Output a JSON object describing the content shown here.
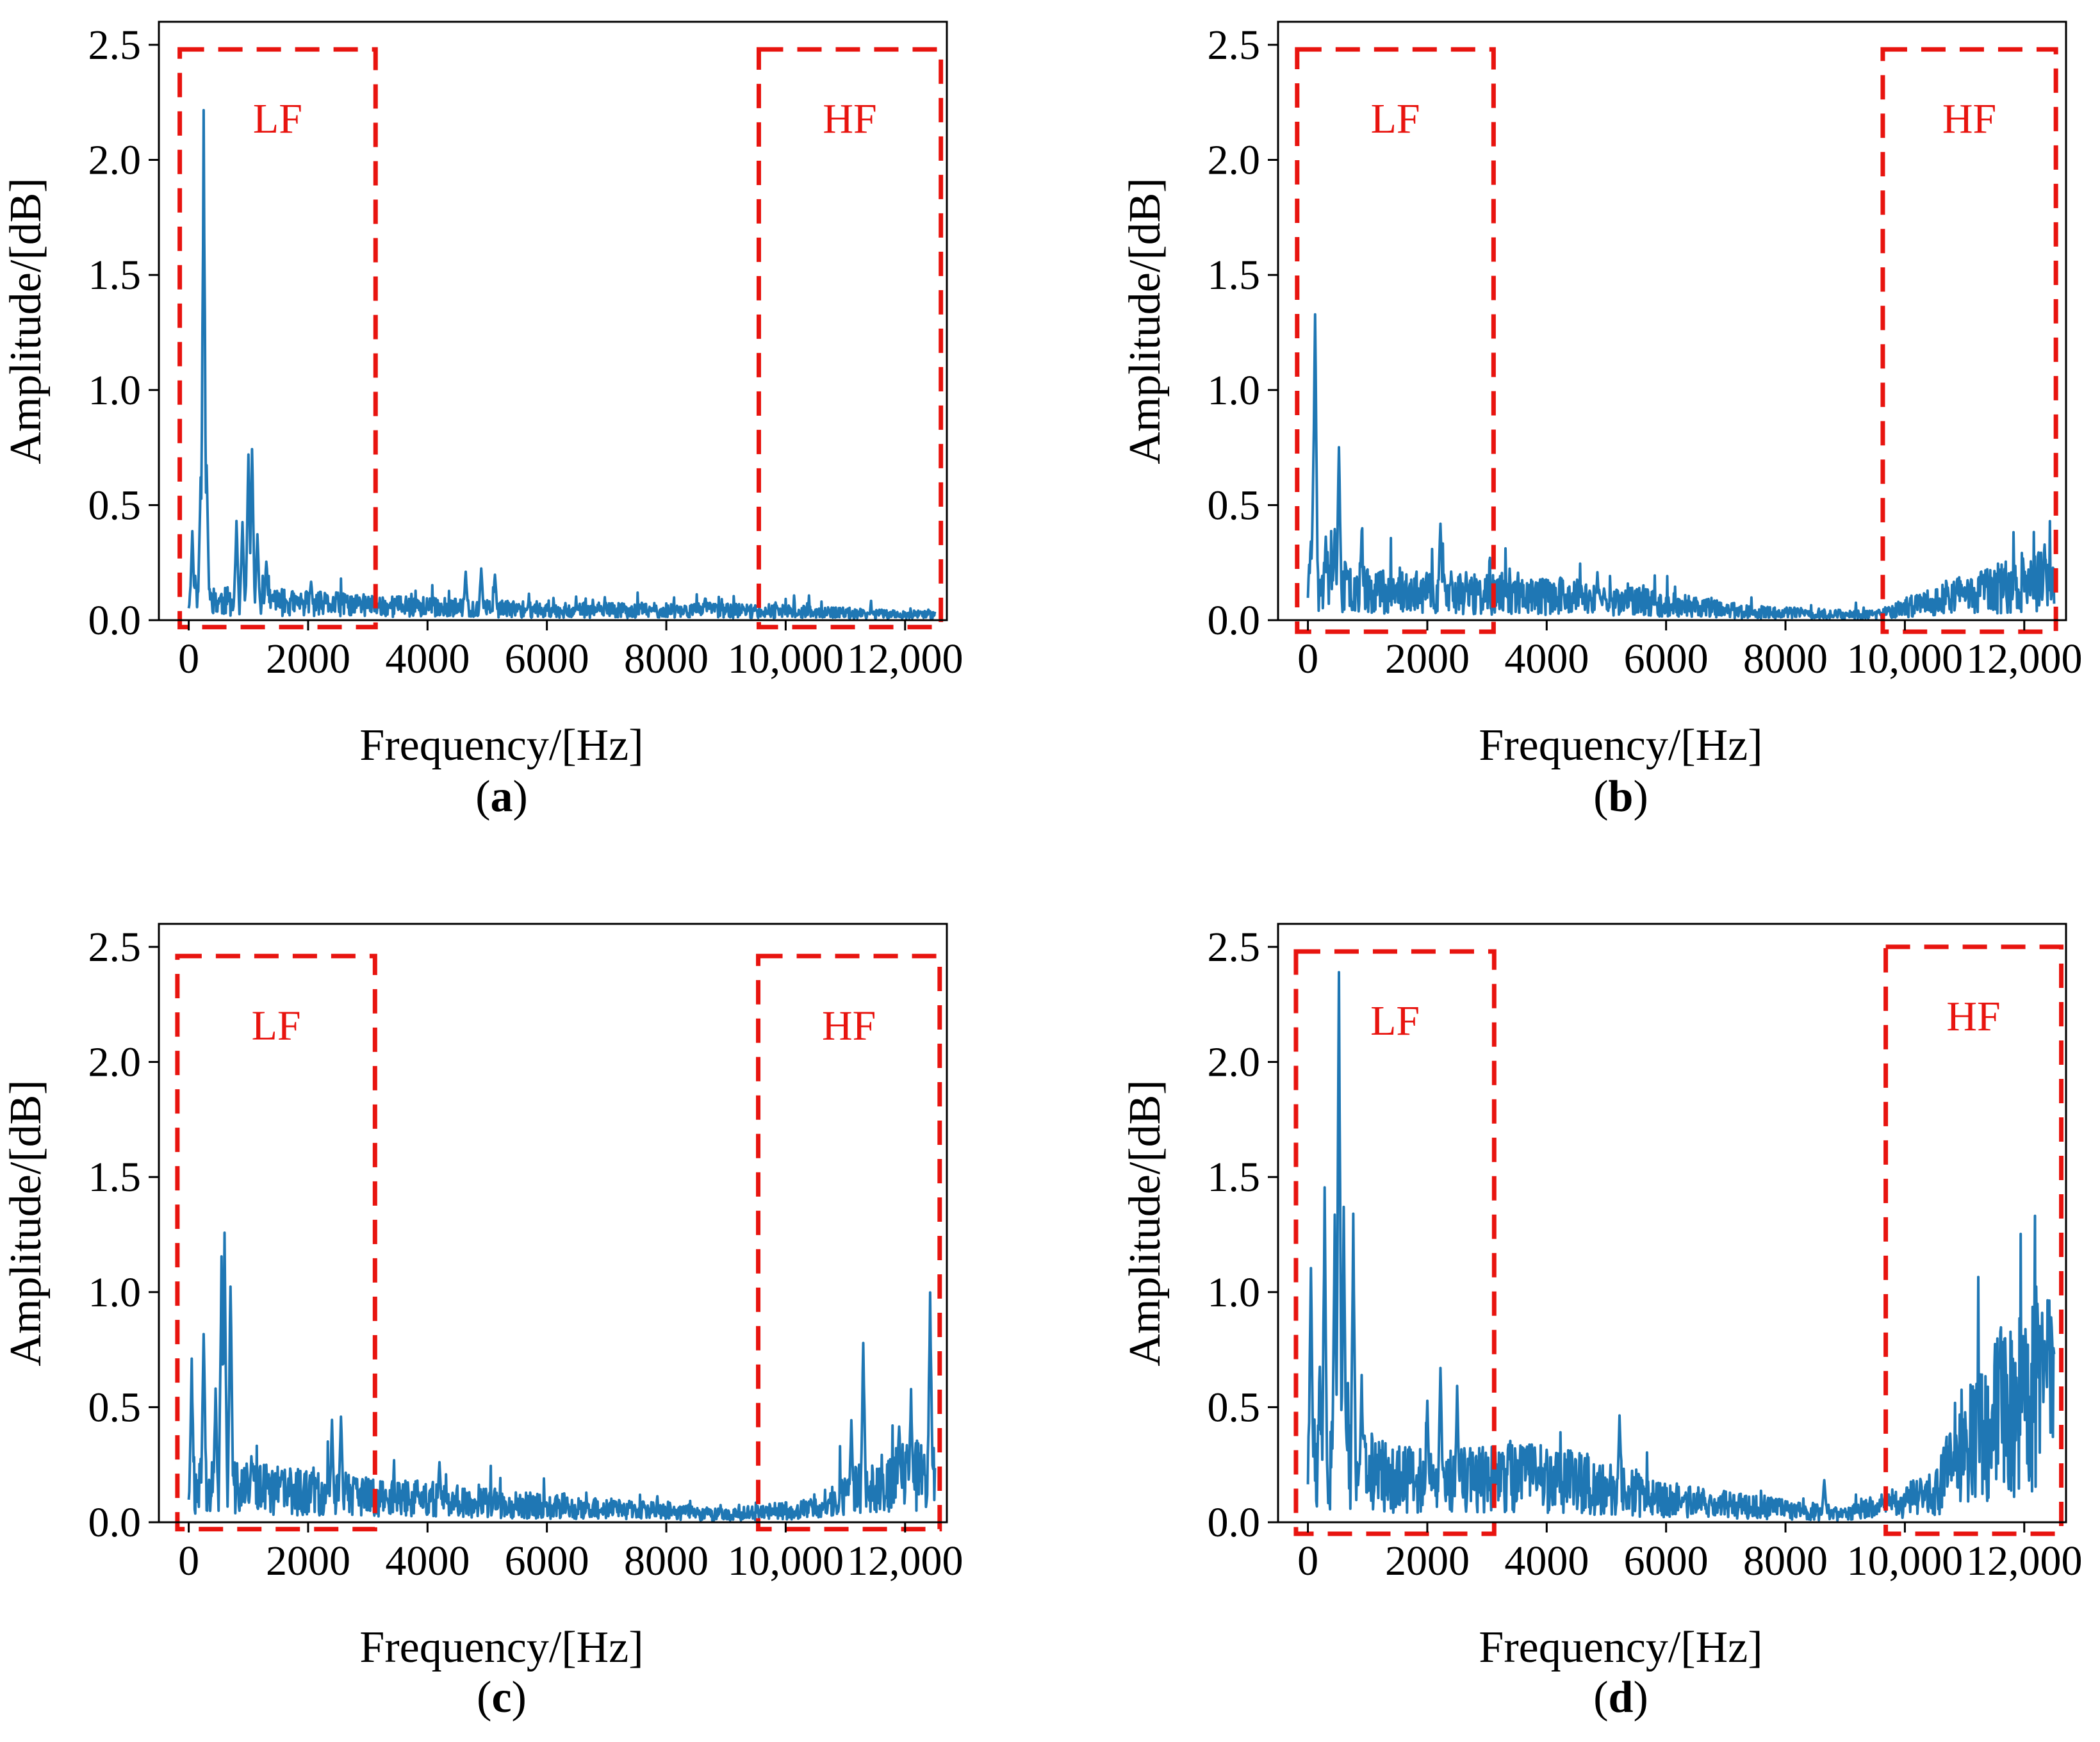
{
  "figure": {
    "colors": {
      "series": "#1f77b4",
      "box": "#e8140f",
      "axis": "#000000",
      "background": "#ffffff"
    }
  },
  "chart_data": [
    {
      "panel": "a",
      "type": "line",
      "caption_letter": "a",
      "xlabel": "Frequency/[Hz]",
      "ylabel": "Amplitude/[dB]",
      "xlim": [
        -500,
        12700
      ],
      "ylim": [
        0,
        2.6
      ],
      "xticks": [
        0,
        2000,
        4000,
        6000,
        8000,
        10000,
        12000
      ],
      "xtick_labels": [
        "0",
        "2000",
        "4000",
        "6000",
        "8000",
        "10,000",
        "12,000"
      ],
      "yticks": [
        0.0,
        0.5,
        1.0,
        1.5,
        2.0,
        2.5
      ],
      "ytick_labels": [
        "0.0",
        "0.5",
        "1.0",
        "1.5",
        "2.0",
        "2.5"
      ],
      "regions": [
        {
          "label": "LF",
          "x": [
            -150,
            3130
          ],
          "y": [
            -0.03,
            2.48
          ]
        },
        {
          "label": "HF",
          "x": [
            9550,
            12600
          ],
          "y": [
            -0.03,
            2.48
          ]
        }
      ],
      "baseline": [
        [
          0,
          0.08
        ],
        [
          3000,
          0.06
        ],
        [
          6000,
          0.04
        ],
        [
          9000,
          0.04
        ],
        [
          12500,
          0.02
        ]
      ],
      "noise": 0.6,
      "peaks": [
        [
          60,
          0.4
        ],
        [
          200,
          0.66
        ],
        [
          250,
          2.22
        ],
        [
          300,
          0.7
        ],
        [
          800,
          0.45
        ],
        [
          900,
          0.45
        ],
        [
          1000,
          0.76
        ],
        [
          1060,
          0.79
        ],
        [
          1150,
          0.4
        ],
        [
          1300,
          0.28
        ],
        [
          2050,
          0.18
        ],
        [
          4640,
          0.22
        ],
        [
          4900,
          0.24
        ],
        [
          5130,
          0.21
        ],
        [
          8650,
          0.1
        ]
      ],
      "seed": 11
    },
    {
      "panel": "b",
      "type": "line",
      "caption_letter": "b",
      "xlabel": "Frequency/[Hz]",
      "ylabel": "Amplitude/[dB]",
      "xlim": [
        -500,
        12700
      ],
      "ylim": [
        0,
        2.6
      ],
      "xticks": [
        0,
        2000,
        4000,
        6000,
        8000,
        10000,
        12000
      ],
      "xtick_labels": [
        "0",
        "2000",
        "4000",
        "6000",
        "8000",
        "10,000",
        "12,000"
      ],
      "yticks": [
        0.0,
        0.5,
        1.0,
        1.5,
        2.0,
        2.5
      ],
      "ytick_labels": [
        "0.0",
        "0.5",
        "1.0",
        "1.5",
        "2.0",
        "2.5"
      ],
      "regions": [
        {
          "label": "LF",
          "x": [
            -180,
            3110
          ],
          "y": [
            -0.05,
            2.48
          ]
        },
        {
          "label": "HF",
          "x": [
            9630,
            12530
          ],
          "y": [
            -0.05,
            2.48
          ]
        }
      ],
      "baseline": [
        [
          0,
          0.14
        ],
        [
          2000,
          0.1
        ],
        [
          4500,
          0.09
        ],
        [
          7500,
          0.03
        ],
        [
          9500,
          0.02
        ],
        [
          11000,
          0.1
        ],
        [
          12400,
          0.15
        ]
      ],
      "noise": 0.7,
      "peaks": [
        [
          50,
          0.37
        ],
        [
          100,
          0.9
        ],
        [
          120,
          1.44
        ],
        [
          300,
          0.38
        ],
        [
          450,
          0.42
        ],
        [
          520,
          0.78
        ],
        [
          900,
          0.39
        ],
        [
          2220,
          0.46
        ],
        [
          2400,
          0.22
        ],
        [
          2650,
          0.23
        ],
        [
          4850,
          0.21
        ],
        [
          5400,
          0.15
        ],
        [
          11300,
          0.2
        ],
        [
          12340,
          0.35
        ]
      ],
      "seed": 23
    },
    {
      "panel": "c",
      "type": "line",
      "caption_letter": "c",
      "xlabel": "Frequency/[Hz]",
      "ylabel": "Amplitude/[dB]",
      "xlim": [
        -500,
        12700
      ],
      "ylim": [
        0,
        2.6
      ],
      "xticks": [
        0,
        2000,
        4000,
        6000,
        8000,
        10000,
        12000
      ],
      "xtick_labels": [
        "0",
        "2000",
        "4000",
        "6000",
        "8000",
        "10,000",
        "12,000"
      ],
      "yticks": [
        0.0,
        0.5,
        1.0,
        1.5,
        2.0,
        2.5
      ],
      "ytick_labels": [
        "0.0",
        "0.5",
        "1.0",
        "1.5",
        "2.0",
        "2.5"
      ],
      "regions": [
        {
          "label": "LF",
          "x": [
            -190,
            3120
          ],
          "y": [
            -0.03,
            2.46
          ]
        },
        {
          "label": "HF",
          "x": [
            9540,
            12580
          ],
          "y": [
            -0.03,
            2.46
          ]
        }
      ],
      "baseline": [
        [
          0,
          0.14
        ],
        [
          3000,
          0.1
        ],
        [
          6000,
          0.06
        ],
        [
          9000,
          0.03
        ],
        [
          10500,
          0.05
        ],
        [
          11500,
          0.15
        ],
        [
          12500,
          0.2
        ]
      ],
      "noise": 0.7,
      "peaks": [
        [
          50,
          0.72
        ],
        [
          250,
          0.88
        ],
        [
          450,
          0.6
        ],
        [
          550,
          1.2
        ],
        [
          600,
          1.27
        ],
        [
          700,
          1.09
        ],
        [
          1050,
          0.31
        ],
        [
          2400,
          0.46
        ],
        [
          2550,
          0.5
        ],
        [
          4200,
          0.27
        ],
        [
          11100,
          0.46
        ],
        [
          11300,
          0.82
        ],
        [
          11900,
          0.46
        ],
        [
          12100,
          0.6
        ],
        [
          12420,
          1.03
        ],
        [
          12550,
          0.8
        ]
      ],
      "seed": 37
    },
    {
      "panel": "d",
      "type": "line",
      "caption_letter": "d",
      "xlabel": "Frequency/[Hz]",
      "ylabel": "Amplitude/[dB]",
      "xlim": [
        -500,
        12700
      ],
      "ylim": [
        0,
        2.6
      ],
      "xticks": [
        0,
        2000,
        4000,
        6000,
        8000,
        10000,
        12000
      ],
      "xtick_labels": [
        "0",
        "2000",
        "4000",
        "6000",
        "8000",
        "10,000",
        "12,000"
      ],
      "yticks": [
        0.0,
        0.5,
        1.0,
        1.5,
        2.0,
        2.5
      ],
      "ytick_labels": [
        "0.0",
        "0.5",
        "1.0",
        "1.5",
        "2.0",
        "2.5"
      ],
      "regions": [
        {
          "label": "LF",
          "x": [
            -200,
            3120
          ],
          "y": [
            -0.05,
            2.48
          ]
        },
        {
          "label": "HF",
          "x": [
            9680,
            12620
          ],
          "y": [
            -0.05,
            2.5
          ]
        }
      ],
      "baseline": [
        [
          0,
          0.22
        ],
        [
          2000,
          0.14
        ],
        [
          4000,
          0.16
        ],
        [
          6000,
          0.08
        ],
        [
          9000,
          0.03
        ],
        [
          10500,
          0.1
        ],
        [
          11000,
          0.3
        ],
        [
          12300,
          0.45
        ]
      ],
      "noise": 0.8,
      "peaks": [
        [
          50,
          1.16
        ],
        [
          200,
          0.7
        ],
        [
          280,
          1.48
        ],
        [
          450,
          1.36
        ],
        [
          520,
          2.47
        ],
        [
          600,
          1.38
        ],
        [
          760,
          1.37
        ],
        [
          900,
          0.65
        ],
        [
          2000,
          0.54
        ],
        [
          2220,
          0.72
        ],
        [
          2500,
          0.6
        ],
        [
          3800,
          0.35
        ],
        [
          5220,
          0.5
        ],
        [
          8650,
          0.2
        ],
        [
          11220,
          0.6
        ],
        [
          11600,
          0.87
        ],
        [
          11950,
          0.62
        ],
        [
          12300,
          0.92
        ],
        [
          12400,
          1.0
        ]
      ],
      "seed": 51
    }
  ]
}
